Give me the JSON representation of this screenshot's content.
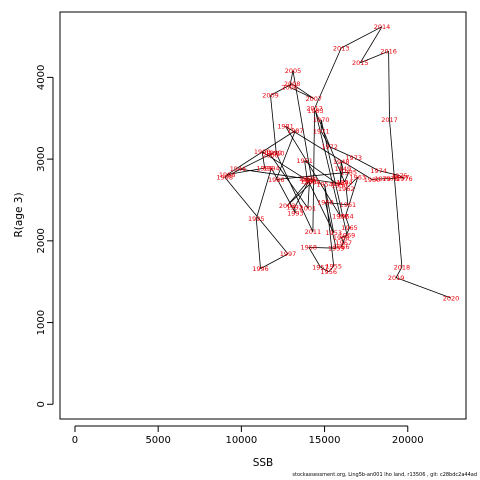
{
  "chart_data": {
    "type": "scatter",
    "connected": true,
    "xlabel": "SSB",
    "ylabel": "R(age 3)",
    "xlim": [
      -900,
      23500
    ],
    "ylim": [
      -180,
      4800
    ],
    "xticks": [
      0,
      5000,
      10000,
      15000,
      20000
    ],
    "xtick_labels": [
      "0",
      "5000",
      "10000",
      "15000",
      "20000"
    ],
    "yticks": [
      0,
      1000,
      2000,
      3000,
      4000
    ],
    "ytick_labels": [
      "0",
      "1000",
      "2000",
      "3000",
      "4000"
    ],
    "label_color": "#e8000b",
    "line_color": "#000000",
    "points": [
      {
        "label": "1946",
        "x": 9800,
        "y": 2880
      },
      {
        "label": "1947",
        "x": 15950,
        "y": 2700
      },
      {
        "label": "1948",
        "x": 16000,
        "y": 2970
      },
      {
        "label": "1949",
        "x": 16100,
        "y": 2880
      },
      {
        "label": "1950",
        "x": 15900,
        "y": 2680
      },
      {
        "label": "1951",
        "x": 13800,
        "y": 2980
      },
      {
        "label": "1952",
        "x": 13950,
        "y": 2760
      },
      {
        "label": "1953",
        "x": 15550,
        "y": 2100
      },
      {
        "label": "1954",
        "x": 15000,
        "y": 2690
      },
      {
        "label": "1955",
        "x": 15550,
        "y": 1690
      },
      {
        "label": "1956",
        "x": 15250,
        "y": 1620
      },
      {
        "label": "1957",
        "x": 14750,
        "y": 1680
      },
      {
        "label": "1958",
        "x": 14050,
        "y": 1920
      },
      {
        "label": "1959",
        "x": 15700,
        "y": 1910
      },
      {
        "label": "1960",
        "x": 15050,
        "y": 2470
      },
      {
        "label": "1961",
        "x": 16400,
        "y": 2440
      },
      {
        "label": "1962",
        "x": 16300,
        "y": 2640
      },
      {
        "label": "1963",
        "x": 17000,
        "y": 2780
      },
      {
        "label": "1964",
        "x": 16250,
        "y": 2300
      },
      {
        "label": "1965",
        "x": 16500,
        "y": 2160
      },
      {
        "label": "1966",
        "x": 16000,
        "y": 1930
      },
      {
        "label": "1967",
        "x": 16150,
        "y": 1980
      },
      {
        "label": "1968",
        "x": 16000,
        "y": 2040
      },
      {
        "label": "1969",
        "x": 16350,
        "y": 2070
      },
      {
        "label": "1970",
        "x": 14800,
        "y": 3480
      },
      {
        "label": "1971",
        "x": 14800,
        "y": 3340
      },
      {
        "label": "1972",
        "x": 15300,
        "y": 3150
      },
      {
        "label": "1973",
        "x": 16750,
        "y": 3020
      },
      {
        "label": "1974",
        "x": 18250,
        "y": 2860
      },
      {
        "label": "1975",
        "x": 19500,
        "y": 2800
      },
      {
        "label": "1976",
        "x": 19800,
        "y": 2760
      },
      {
        "label": "1977",
        "x": 19600,
        "y": 2780
      },
      {
        "label": "1978",
        "x": 18950,
        "y": 2760
      },
      {
        "label": "1979",
        "x": 18500,
        "y": 2760
      },
      {
        "label": "1980",
        "x": 17850,
        "y": 2750
      },
      {
        "label": "1981",
        "x": 12650,
        "y": 3400
      },
      {
        "label": "1982",
        "x": 15950,
        "y": 2300
      },
      {
        "label": "1983",
        "x": 14450,
        "y": 3590
      },
      {
        "label": "1984",
        "x": 16200,
        "y": 2720
      },
      {
        "label": "1985",
        "x": 16450,
        "y": 2840
      },
      {
        "label": "1986",
        "x": 12100,
        "y": 2750
      },
      {
        "label": "1987",
        "x": 13250,
        "y": 3350
      },
      {
        "label": "1988",
        "x": 9150,
        "y": 2810
      },
      {
        "label": "1989",
        "x": 11400,
        "y": 2890
      },
      {
        "label": "1990",
        "x": 11250,
        "y": 3090
      },
      {
        "label": "1991",
        "x": 14050,
        "y": 2730
      },
      {
        "label": "1992",
        "x": 13200,
        "y": 2410
      },
      {
        "label": "1993",
        "x": 13250,
        "y": 2340
      },
      {
        "label": "1994",
        "x": 11800,
        "y": 2890
      },
      {
        "label": "1995",
        "x": 10900,
        "y": 2270
      },
      {
        "label": "1996",
        "x": 11150,
        "y": 1660
      },
      {
        "label": "1997",
        "x": 12800,
        "y": 1840
      },
      {
        "label": "1998",
        "x": 9000,
        "y": 2780
      },
      {
        "label": "1999",
        "x": 11950,
        "y": 3080
      },
      {
        "label": "2000",
        "x": 11750,
        "y": 3050
      },
      {
        "label": "2001",
        "x": 14000,
        "y": 2400
      },
      {
        "label": "2002",
        "x": 14100,
        "y": 2750
      },
      {
        "label": "2003",
        "x": 12750,
        "y": 2430
      },
      {
        "label": "2004",
        "x": 14250,
        "y": 2720
      },
      {
        "label": "2005",
        "x": 13100,
        "y": 4080
      },
      {
        "label": "2006",
        "x": 12900,
        "y": 3880
      },
      {
        "label": "2007",
        "x": 14350,
        "y": 3740
      },
      {
        "label": "2008",
        "x": 13050,
        "y": 3920
      },
      {
        "label": "2009",
        "x": 11750,
        "y": 3780
      },
      {
        "label": "2010",
        "x": 12100,
        "y": 3070
      },
      {
        "label": "2011",
        "x": 14300,
        "y": 2110
      },
      {
        "label": "2012",
        "x": 14400,
        "y": 3620
      },
      {
        "label": "2013",
        "x": 16000,
        "y": 4360
      },
      {
        "label": "2014",
        "x": 18450,
        "y": 4620
      },
      {
        "label": "2015",
        "x": 17150,
        "y": 4180
      },
      {
        "label": "2016",
        "x": 18850,
        "y": 4320
      },
      {
        "label": "2017",
        "x": 18900,
        "y": 3480
      },
      {
        "label": "2018",
        "x": 19650,
        "y": 1680
      },
      {
        "label": "2019",
        "x": 19300,
        "y": 1550
      },
      {
        "label": "2020",
        "x": 22600,
        "y": 1300
      }
    ]
  },
  "footer_text": "stockassessment.org,  Ling5b-an001  lho  land,  r13506 ,  git:  c28bdc2a44ad"
}
